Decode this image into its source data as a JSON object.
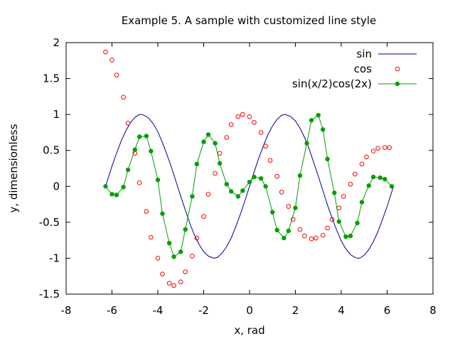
{
  "chart_data": {
    "type": "line",
    "title": "Example 5. A sample with customized line style",
    "xlabel": "x, rad",
    "ylabel": "y, dimensionless",
    "xlim": [
      -8,
      8
    ],
    "ylim": [
      -1.5,
      2
    ],
    "xticks": [
      -8,
      -6,
      -4,
      -2,
      0,
      2,
      4,
      6,
      8
    ],
    "yticks": [
      -1.5,
      -1,
      -0.5,
      0,
      0.5,
      1,
      1.5,
      2
    ],
    "xtick_labels": [
      "-8",
      "-6",
      "-4",
      "-2",
      "0",
      "2",
      "4",
      "6",
      "8"
    ],
    "ytick_labels": [
      "-1.5",
      "-1",
      "-0.5",
      "0",
      "0.5",
      "1",
      "1.5",
      "2"
    ],
    "grid": false,
    "legend_position": "top-right",
    "series": [
      {
        "name": "sin",
        "style": "line",
        "color": "#00008b",
        "x": [
          -6.28,
          -6.0,
          -5.8,
          -5.6,
          -5.4,
          -5.2,
          -5.0,
          -4.8,
          -4.71,
          -4.6,
          -4.4,
          -4.2,
          -4.0,
          -3.8,
          -3.6,
          -3.4,
          -3.2,
          -3.0,
          -2.8,
          -2.6,
          -2.4,
          -2.2,
          -2.0,
          -1.8,
          -1.571,
          -1.4,
          -1.2,
          -1.0,
          -0.8,
          -0.6,
          -0.4,
          -0.2,
          0.0,
          0.2,
          0.4,
          0.6,
          0.8,
          1.0,
          1.2,
          1.4,
          1.571,
          1.8,
          2.0,
          2.2,
          2.4,
          2.6,
          2.8,
          3.0,
          3.2,
          3.4,
          3.6,
          3.8,
          4.0,
          4.2,
          4.4,
          4.6,
          4.71,
          4.8,
          5.0,
          5.2,
          5.4,
          5.6,
          5.8,
          6.0,
          6.28
        ],
        "values": [
          0.0,
          0.28,
          0.46,
          0.63,
          0.77,
          0.88,
          0.96,
          1.0,
          1.0,
          0.99,
          0.95,
          0.87,
          0.76,
          0.61,
          0.44,
          0.26,
          0.06,
          -0.14,
          -0.33,
          -0.52,
          -0.68,
          -0.81,
          -0.91,
          -0.97,
          -1.0,
          -0.99,
          -0.93,
          -0.84,
          -0.72,
          -0.56,
          -0.39,
          -0.2,
          0.0,
          0.2,
          0.39,
          0.56,
          0.72,
          0.84,
          0.93,
          0.99,
          1.0,
          0.97,
          0.91,
          0.81,
          0.68,
          0.52,
          0.33,
          0.14,
          -0.06,
          -0.26,
          -0.44,
          -0.61,
          -0.76,
          -0.87,
          -0.95,
          -0.99,
          -1.0,
          -1.0,
          -0.96,
          -0.88,
          -0.77,
          -0.63,
          -0.46,
          -0.28,
          0.0
        ]
      },
      {
        "name": "cos",
        "style": "open-circle-points",
        "color": "#ff0000",
        "x": [
          -6.28,
          -6.0,
          -5.8,
          -5.5,
          -5.3,
          -5.0,
          -4.8,
          -4.5,
          -4.3,
          -4.0,
          -3.8,
          -3.5,
          -3.3,
          -3.0,
          -2.8,
          -2.5,
          -2.3,
          -2.0,
          -1.8,
          -1.5,
          -1.3,
          -1.0,
          -0.8,
          -0.5,
          -0.3,
          0.0,
          0.2,
          0.5,
          0.7,
          0.9,
          1.2,
          1.4,
          1.7,
          1.9,
          2.2,
          2.4,
          2.7,
          2.9,
          3.2,
          3.4,
          3.6,
          3.9,
          4.1,
          4.4,
          4.6,
          4.9,
          5.1,
          5.4,
          5.6,
          5.9,
          6.1
        ],
        "values": [
          1.87,
          1.76,
          1.55,
          1.24,
          0.88,
          0.46,
          0.05,
          -0.35,
          -0.71,
          -1.0,
          -1.22,
          -1.35,
          -1.38,
          -1.33,
          -1.19,
          -0.97,
          -0.72,
          -0.42,
          -0.11,
          0.18,
          0.46,
          0.68,
          0.86,
          0.97,
          1.0,
          0.97,
          0.89,
          0.75,
          0.56,
          0.36,
          0.14,
          -0.08,
          -0.28,
          -0.46,
          -0.6,
          -0.69,
          -0.73,
          -0.72,
          -0.68,
          -0.58,
          -0.46,
          -0.3,
          -0.14,
          0.03,
          0.17,
          0.31,
          0.41,
          0.49,
          0.53,
          0.54,
          0.54
        ]
      },
      {
        "name": "sin(x/2)cos(2x)",
        "style": "line-with-filled-points",
        "color": "#00a000",
        "x": [
          -6.28,
          -6.0,
          -5.8,
          -5.5,
          -5.3,
          -5.0,
          -4.8,
          -4.5,
          -4.3,
          -4.0,
          -3.8,
          -3.5,
          -3.3,
          -3.0,
          -2.8,
          -2.5,
          -2.3,
          -2.0,
          -1.8,
          -1.5,
          -1.3,
          -1.0,
          -0.8,
          -0.5,
          -0.3,
          0.0,
          0.2,
          0.5,
          0.7,
          1.0,
          1.2,
          1.5,
          1.7,
          2.0,
          2.2,
          2.5,
          2.7,
          3.0,
          3.2,
          3.4,
          3.7,
          3.9,
          4.2,
          4.4,
          4.7,
          4.9,
          5.2,
          5.4,
          5.7,
          5.9,
          6.2
        ],
        "values": [
          0.0,
          -0.11,
          -0.12,
          -0.01,
          0.23,
          0.51,
          0.69,
          0.7,
          0.49,
          0.09,
          -0.38,
          -0.79,
          -0.98,
          -0.91,
          -0.6,
          -0.14,
          0.31,
          0.62,
          0.72,
          0.6,
          0.32,
          0.03,
          -0.07,
          -0.14,
          -0.06,
          0.06,
          0.13,
          0.11,
          0.0,
          -0.36,
          -0.61,
          -0.72,
          -0.62,
          -0.3,
          0.15,
          0.6,
          0.92,
          0.99,
          0.79,
          0.38,
          -0.09,
          -0.49,
          -0.7,
          -0.69,
          -0.51,
          -0.22,
          0.01,
          0.13,
          0.12,
          0.1,
          0.0
        ]
      }
    ]
  }
}
